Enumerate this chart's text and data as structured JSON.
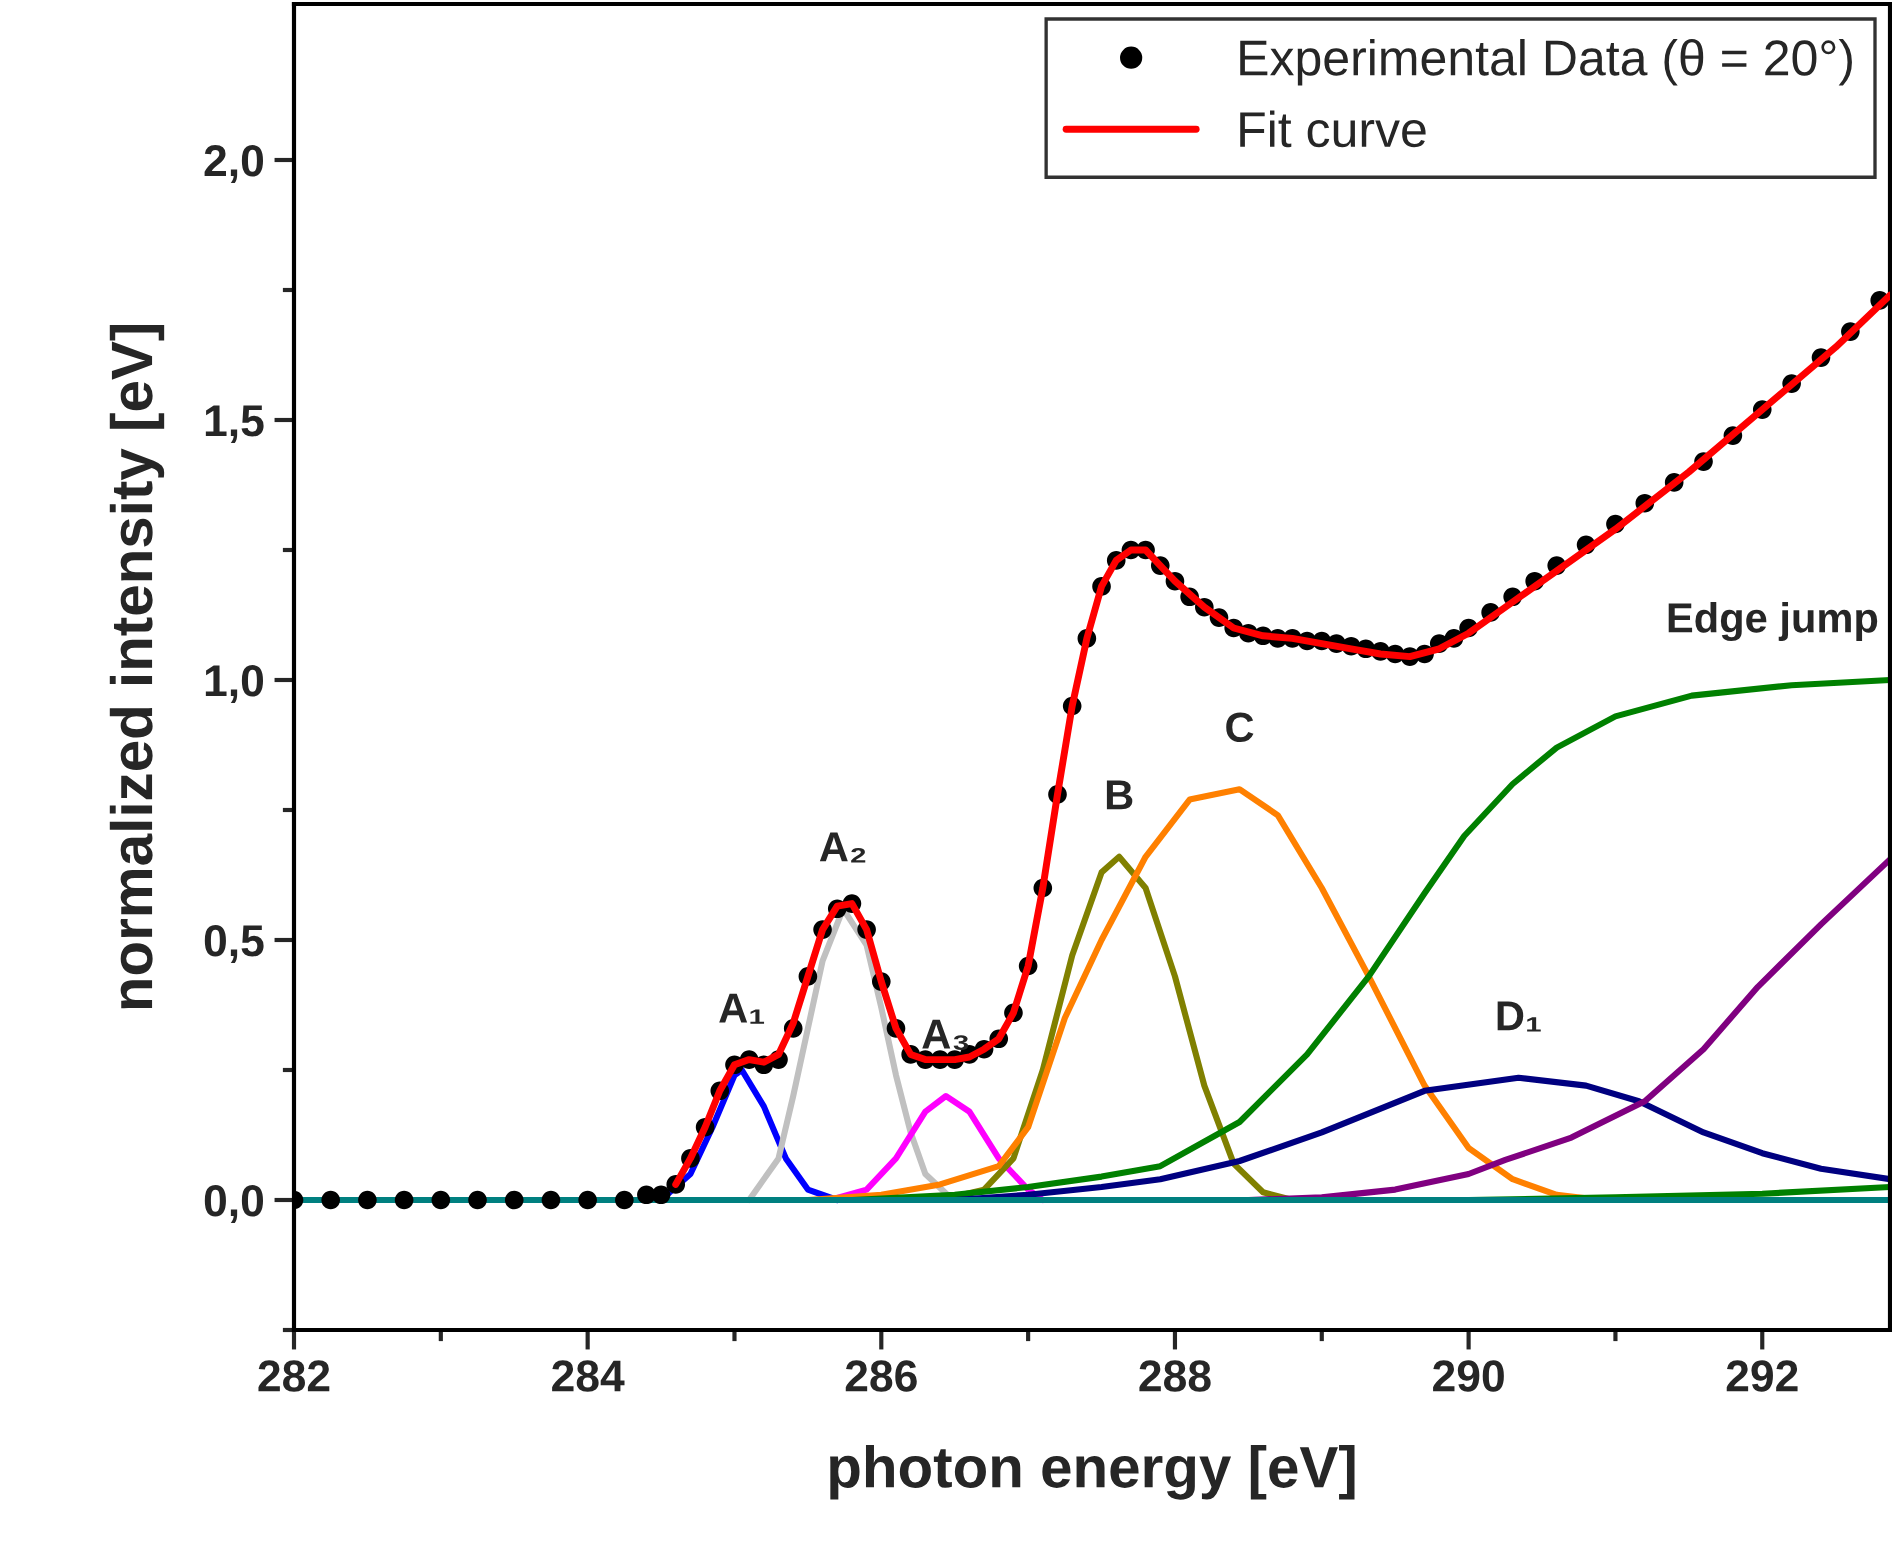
{
  "chart_data": {
    "type": "line",
    "xlabel": "photon energy [eV]",
    "ylabel": "normalized intensity [eV]",
    "xlim": [
      282,
      292.87
    ],
    "ylim": [
      -0.25,
      2.3
    ],
    "xticks": [
      282,
      284,
      286,
      288,
      290,
      292
    ],
    "yticks": [
      {
        "value": 0,
        "label": "0,0"
      },
      {
        "value": 0.5,
        "label": "0,5"
      },
      {
        "value": 1.0,
        "label": "1,0"
      },
      {
        "value": 1.5,
        "label": "1,5"
      },
      {
        "value": 2.0,
        "label": "2,0"
      }
    ],
    "grid": false,
    "legend": "top right",
    "annotations": [
      {
        "text": "A₁",
        "x": 285.05,
        "y": 0.25
      },
      {
        "text": "A₂",
        "x": 285.74,
        "y": 0.56
      },
      {
        "text": "A₃",
        "x": 286.44,
        "y": 0.2
      },
      {
        "text": "B",
        "x": 287.62,
        "y": 0.66
      },
      {
        "text": "C",
        "x": 288.44,
        "y": 0.79
      },
      {
        "text": "Edge jump",
        "x": 292.87,
        "y": 1.0
      },
      {
        "text": "D₁",
        "x": 290.34,
        "y": 0.235
      }
    ],
    "series": [
      {
        "name": "Experimental Data (θ = 20°)",
        "type": "scatter",
        "marker": "circle",
        "color": "#000000",
        "x": [
          282.0,
          282.25,
          282.5,
          282.75,
          283.0,
          283.25,
          283.5,
          283.75,
          284.0,
          284.25,
          284.4,
          284.5,
          284.6,
          284.7,
          284.8,
          284.9,
          285.0,
          285.1,
          285.2,
          285.3,
          285.4,
          285.5,
          285.6,
          285.7,
          285.8,
          285.9,
          286.0,
          286.1,
          286.2,
          286.3,
          286.4,
          286.5,
          286.6,
          286.7,
          286.8,
          286.9,
          287.0,
          287.1,
          287.2,
          287.3,
          287.4,
          287.5,
          287.6,
          287.7,
          287.8,
          287.9,
          288.0,
          288.1,
          288.2,
          288.3,
          288.4,
          288.5,
          288.6,
          288.7,
          288.8,
          288.9,
          289.0,
          289.1,
          289.2,
          289.3,
          289.4,
          289.5,
          289.6,
          289.7,
          289.8,
          289.9,
          290.0,
          290.15,
          290.3,
          290.45,
          290.6,
          290.8,
          291.0,
          291.2,
          291.4,
          291.6,
          291.8,
          292.0,
          292.2,
          292.4,
          292.6,
          292.8
        ],
        "values": [
          0.0,
          0.0,
          0.0,
          0.0,
          0.0,
          0.0,
          0.0,
          0.0,
          0.0,
          0.0,
          0.01,
          0.01,
          0.03,
          0.08,
          0.14,
          0.21,
          0.26,
          0.27,
          0.26,
          0.27,
          0.33,
          0.43,
          0.52,
          0.56,
          0.57,
          0.52,
          0.42,
          0.33,
          0.28,
          0.27,
          0.27,
          0.27,
          0.28,
          0.29,
          0.31,
          0.36,
          0.45,
          0.6,
          0.78,
          0.95,
          1.08,
          1.18,
          1.23,
          1.25,
          1.25,
          1.22,
          1.19,
          1.16,
          1.14,
          1.12,
          1.1,
          1.09,
          1.085,
          1.08,
          1.08,
          1.075,
          1.075,
          1.07,
          1.065,
          1.06,
          1.055,
          1.05,
          1.045,
          1.05,
          1.07,
          1.08,
          1.1,
          1.13,
          1.16,
          1.19,
          1.22,
          1.26,
          1.3,
          1.34,
          1.38,
          1.42,
          1.47,
          1.52,
          1.57,
          1.62,
          1.67,
          1.73
        ]
      },
      {
        "name": "Fit curve",
        "color": "#ff0000",
        "x": [
          284.6,
          284.7,
          284.8,
          284.9,
          285.0,
          285.1,
          285.2,
          285.3,
          285.4,
          285.5,
          285.6,
          285.7,
          285.8,
          285.9,
          286.0,
          286.1,
          286.2,
          286.3,
          286.4,
          286.5,
          286.6,
          286.7,
          286.8,
          286.9,
          287.0,
          287.1,
          287.2,
          287.3,
          287.4,
          287.5,
          287.6,
          287.7,
          287.8,
          287.9,
          288.0,
          288.2,
          288.4,
          288.6,
          288.8,
          289.0,
          289.2,
          289.4,
          289.6,
          289.8,
          290.0,
          290.3,
          290.6,
          291.0,
          291.5,
          292.0,
          292.5,
          292.87
        ],
        "values": [
          0.03,
          0.08,
          0.14,
          0.21,
          0.26,
          0.27,
          0.265,
          0.28,
          0.34,
          0.43,
          0.52,
          0.565,
          0.57,
          0.52,
          0.42,
          0.33,
          0.28,
          0.27,
          0.27,
          0.27,
          0.275,
          0.29,
          0.31,
          0.36,
          0.45,
          0.6,
          0.78,
          0.95,
          1.08,
          1.18,
          1.23,
          1.25,
          1.25,
          1.22,
          1.19,
          1.14,
          1.1,
          1.085,
          1.08,
          1.07,
          1.06,
          1.05,
          1.045,
          1.06,
          1.09,
          1.15,
          1.21,
          1.29,
          1.4,
          1.52,
          1.64,
          1.74
        ]
      },
      {
        "color": "#0000ff",
        "x": [
          284.5,
          284.7,
          284.85,
          285.0,
          285.05,
          285.2,
          285.35,
          285.5,
          285.7
        ],
        "values": [
          0.0,
          0.05,
          0.14,
          0.24,
          0.25,
          0.18,
          0.08,
          0.02,
          0.0
        ]
      },
      {
        "color": "#c0c0c0",
        "x": [
          285.1,
          285.3,
          285.4,
          285.5,
          285.6,
          285.74,
          285.9,
          286.0,
          286.1,
          286.2,
          286.3,
          286.45,
          286.6
        ],
        "values": [
          0.0,
          0.08,
          0.2,
          0.33,
          0.46,
          0.56,
          0.49,
          0.37,
          0.24,
          0.13,
          0.05,
          0.01,
          0.0
        ]
      },
      {
        "color": "#ff00ff",
        "x": [
          285.65,
          285.9,
          286.1,
          286.3,
          286.44,
          286.6,
          286.8,
          287.0,
          287.1
        ],
        "values": [
          0.0,
          0.02,
          0.08,
          0.17,
          0.2,
          0.17,
          0.08,
          0.02,
          0.0
        ]
      },
      {
        "color": "#808000",
        "x": [
          286.4,
          286.7,
          286.9,
          287.1,
          287.3,
          287.5,
          287.62,
          287.8,
          288.0,
          288.2,
          288.4,
          288.6,
          288.8
        ],
        "values": [
          0.0,
          0.02,
          0.08,
          0.25,
          0.47,
          0.63,
          0.66,
          0.6,
          0.43,
          0.22,
          0.07,
          0.015,
          0.0
        ]
      },
      {
        "color": "#ff8000",
        "x": [
          285.5,
          286.0,
          286.4,
          286.8,
          287.0,
          287.25,
          287.5,
          287.8,
          288.1,
          288.44,
          288.7,
          289.0,
          289.32,
          289.7,
          290.0,
          290.3,
          290.6,
          290.9
        ],
        "values": [
          0.0,
          0.01,
          0.03,
          0.065,
          0.14,
          0.35,
          0.5,
          0.66,
          0.77,
          0.79,
          0.74,
          0.6,
          0.43,
          0.22,
          0.1,
          0.04,
          0.01,
          0.0
        ]
      },
      {
        "color": "#008000",
        "x": [
          285.8,
          286.5,
          287.0,
          287.5,
          287.9,
          288.44,
          288.9,
          289.32,
          289.7,
          289.97,
          290.3,
          290.6,
          291.0,
          291.52,
          292.2,
          292.87
        ],
        "values": [
          0.0,
          0.01,
          0.025,
          0.045,
          0.065,
          0.15,
          0.28,
          0.43,
          0.59,
          0.7,
          0.8,
          0.87,
          0.93,
          0.97,
          0.99,
          1.0
        ]
      },
      {
        "color": "#000080",
        "x": [
          286.5,
          287.0,
          287.5,
          287.9,
          288.44,
          289.0,
          289.7,
          290.34,
          290.8,
          291.16,
          291.6,
          292.0,
          292.4,
          292.87
        ],
        "values": [
          0.0,
          0.01,
          0.025,
          0.04,
          0.075,
          0.13,
          0.21,
          0.235,
          0.22,
          0.19,
          0.13,
          0.09,
          0.06,
          0.04
        ]
      },
      {
        "color": "#800080",
        "x": [
          288.5,
          289.0,
          289.5,
          290.0,
          290.25,
          290.7,
          291.2,
          291.6,
          291.97,
          292.4,
          292.87
        ],
        "values": [
          0.0,
          0.005,
          0.02,
          0.05,
          0.077,
          0.12,
          0.19,
          0.29,
          0.41,
          0.53,
          0.655
        ]
      },
      {
        "color": "#008000",
        "x": [
          290.0,
          291.0,
          292.0,
          292.87
        ],
        "values": [
          0.0,
          0.005,
          0.012,
          0.025
        ]
      },
      {
        "color": "#008080",
        "x": [
          282.0,
          292.87
        ],
        "values": [
          0.0,
          0.0
        ]
      }
    ]
  }
}
